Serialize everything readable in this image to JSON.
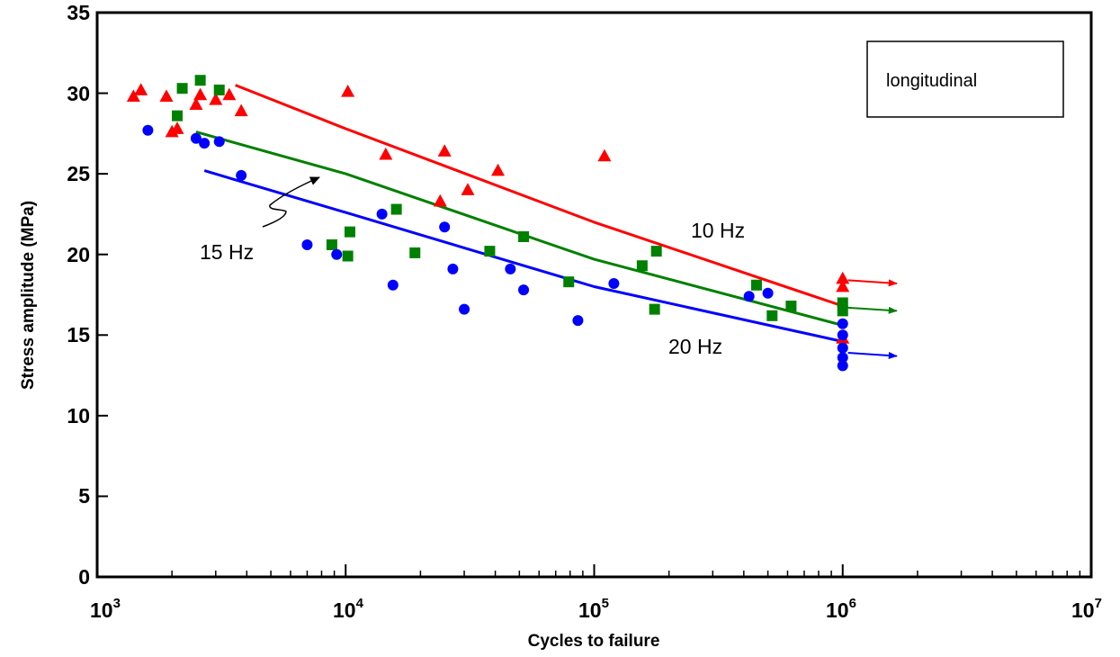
{
  "chart_data": {
    "type": "scatter",
    "x_scale": "log",
    "xlabel": "Cycles to failure",
    "ylabel": "Stress amplitude (MPa)",
    "xlim": [
      1000,
      10000000
    ],
    "ylim": [
      0,
      35
    ],
    "x_ticks": [
      {
        "base": "10",
        "exp": "3",
        "value": 1000
      },
      {
        "base": "10",
        "exp": "4",
        "value": 10000
      },
      {
        "base": "10",
        "exp": "5",
        "value": 100000
      },
      {
        "base": "10",
        "exp": "6",
        "value": 1000000
      },
      {
        "base": "10",
        "exp": "7",
        "value": 10000000
      }
    ],
    "y_ticks": [
      "0",
      "5",
      "10",
      "15",
      "20",
      "25",
      "30",
      "35"
    ],
    "grid": false,
    "legend_box": {
      "text": "longitudinal",
      "position": "top-right"
    },
    "annotations": {
      "hz10": "10 Hz",
      "hz15": "15 Hz",
      "hz20": "20 Hz"
    },
    "colors": {
      "red": "#ff0000",
      "green": "#008000",
      "blue": "#0000ff"
    },
    "series": [
      {
        "marker": "triangle",
        "color": "#ff0000",
        "points": [
          [
            1400,
            29.8
          ],
          [
            1500,
            30.2
          ],
          [
            1900,
            29.8
          ],
          [
            2000,
            27.6
          ],
          [
            2100,
            27.8
          ],
          [
            2500,
            29.3
          ],
          [
            2600,
            29.9
          ],
          [
            3000,
            29.6
          ],
          [
            3400,
            29.9
          ],
          [
            3800,
            28.9
          ],
          [
            10200,
            30.1
          ],
          [
            14500,
            26.2
          ],
          [
            24000,
            23.3
          ],
          [
            25000,
            26.4
          ],
          [
            31000,
            24.0
          ],
          [
            41000,
            25.2
          ],
          [
            110000,
            26.1
          ],
          [
            1000000,
            18.5
          ],
          [
            1000000,
            18.0
          ],
          [
            1000000,
            14.8
          ]
        ],
        "fit": [
          [
            3600,
            30.5
          ],
          [
            10000,
            27.8
          ],
          [
            100000,
            22.0
          ],
          [
            1000000,
            16.8
          ]
        ],
        "runout_arrow": {
          "from": [
            1050000,
            18.4
          ],
          "to": [
            1650000,
            18.2
          ]
        }
      },
      {
        "marker": "square",
        "color": "#008000",
        "points": [
          [
            2100,
            28.6
          ],
          [
            2200,
            30.3
          ],
          [
            2600,
            30.8
          ],
          [
            3100,
            30.2
          ],
          [
            8800,
            20.6
          ],
          [
            10200,
            19.9
          ],
          [
            10400,
            21.4
          ],
          [
            16000,
            22.8
          ],
          [
            19000,
            20.1
          ],
          [
            38000,
            20.2
          ],
          [
            52000,
            21.1
          ],
          [
            79000,
            18.3
          ],
          [
            156000,
            19.3
          ],
          [
            175000,
            16.6
          ],
          [
            178000,
            20.2
          ],
          [
            450000,
            18.1
          ],
          [
            520000,
            16.2
          ],
          [
            620000,
            16.8
          ],
          [
            1000000,
            17.0
          ],
          [
            1000000,
            16.5
          ]
        ],
        "fit": [
          [
            2500,
            27.6
          ],
          [
            10000,
            25.0
          ],
          [
            100000,
            19.7
          ],
          [
            1000000,
            15.6
          ]
        ],
        "runout_arrow": {
          "from": [
            1050000,
            16.7
          ],
          "to": [
            1650000,
            16.5
          ]
        }
      },
      {
        "marker": "circle",
        "color": "#0000ff",
        "points": [
          [
            1600,
            27.7
          ],
          [
            2500,
            27.2
          ],
          [
            2700,
            26.9
          ],
          [
            3100,
            27.0
          ],
          [
            3800,
            24.9
          ],
          [
            7000,
            20.6
          ],
          [
            9200,
            20.0
          ],
          [
            14000,
            22.5
          ],
          [
            15500,
            18.1
          ],
          [
            25000,
            21.7
          ],
          [
            27000,
            19.1
          ],
          [
            30000,
            16.6
          ],
          [
            46000,
            19.1
          ],
          [
            52000,
            17.8
          ],
          [
            86000,
            15.9
          ],
          [
            120000,
            18.2
          ],
          [
            420000,
            17.4
          ],
          [
            500000,
            17.6
          ],
          [
            1000000,
            15.7
          ],
          [
            1000000,
            15.0
          ],
          [
            1000000,
            14.2
          ],
          [
            1000000,
            13.6
          ],
          [
            1000000,
            13.1
          ]
        ],
        "fit": [
          [
            2700,
            25.2
          ],
          [
            10000,
            22.6
          ],
          [
            100000,
            18.0
          ],
          [
            1000000,
            14.6
          ]
        ],
        "runout_arrow": {
          "from": [
            1050000,
            13.9
          ],
          "to": [
            1650000,
            13.7
          ]
        }
      }
    ]
  }
}
